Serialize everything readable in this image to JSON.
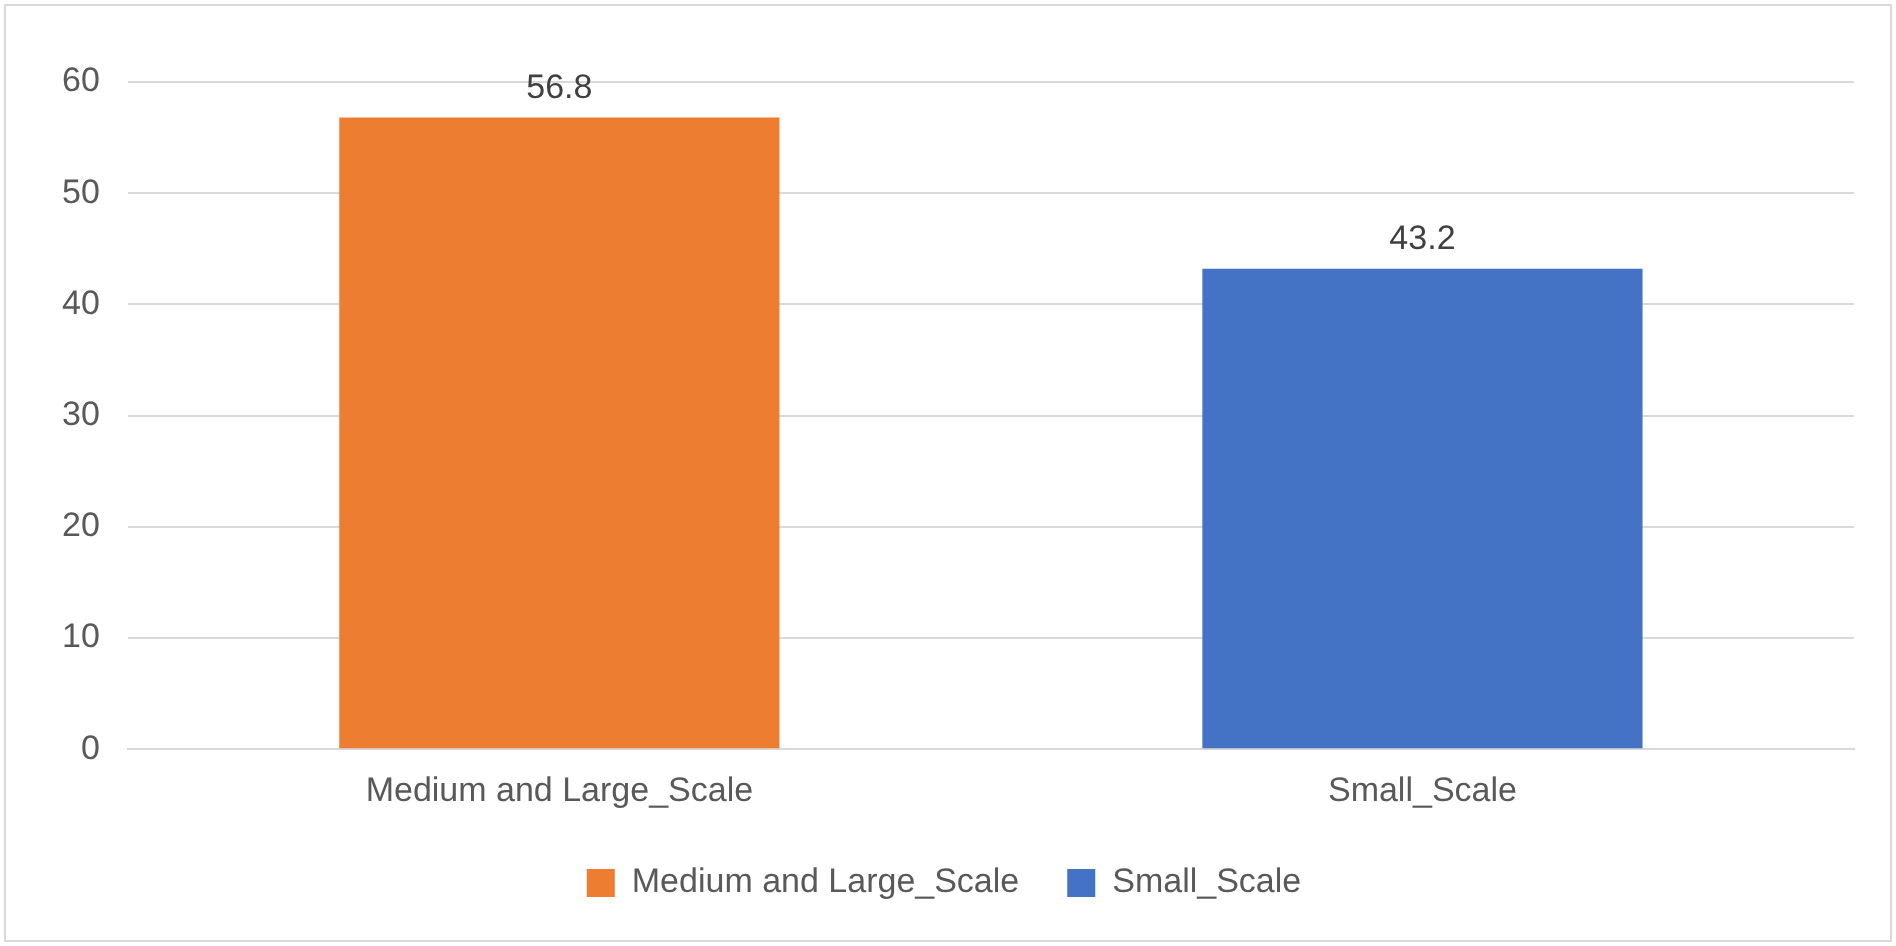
{
  "chart_data": {
    "type": "bar",
    "categories": [
      "Medium and Large_Scale",
      "Small_Scale"
    ],
    "series": [
      {
        "name": "Medium and Large_Scale",
        "color": "#ed7d31",
        "values": [
          56.8,
          null
        ]
      },
      {
        "name": "Small_Scale",
        "color": "#4472c4",
        "values": [
          null,
          43.2
        ]
      }
    ],
    "ylim": [
      0,
      60
    ],
    "yticks": [
      0,
      10,
      20,
      30,
      40,
      50,
      60
    ],
    "grid": "y",
    "legend": "bottom",
    "data_labels": true
  }
}
